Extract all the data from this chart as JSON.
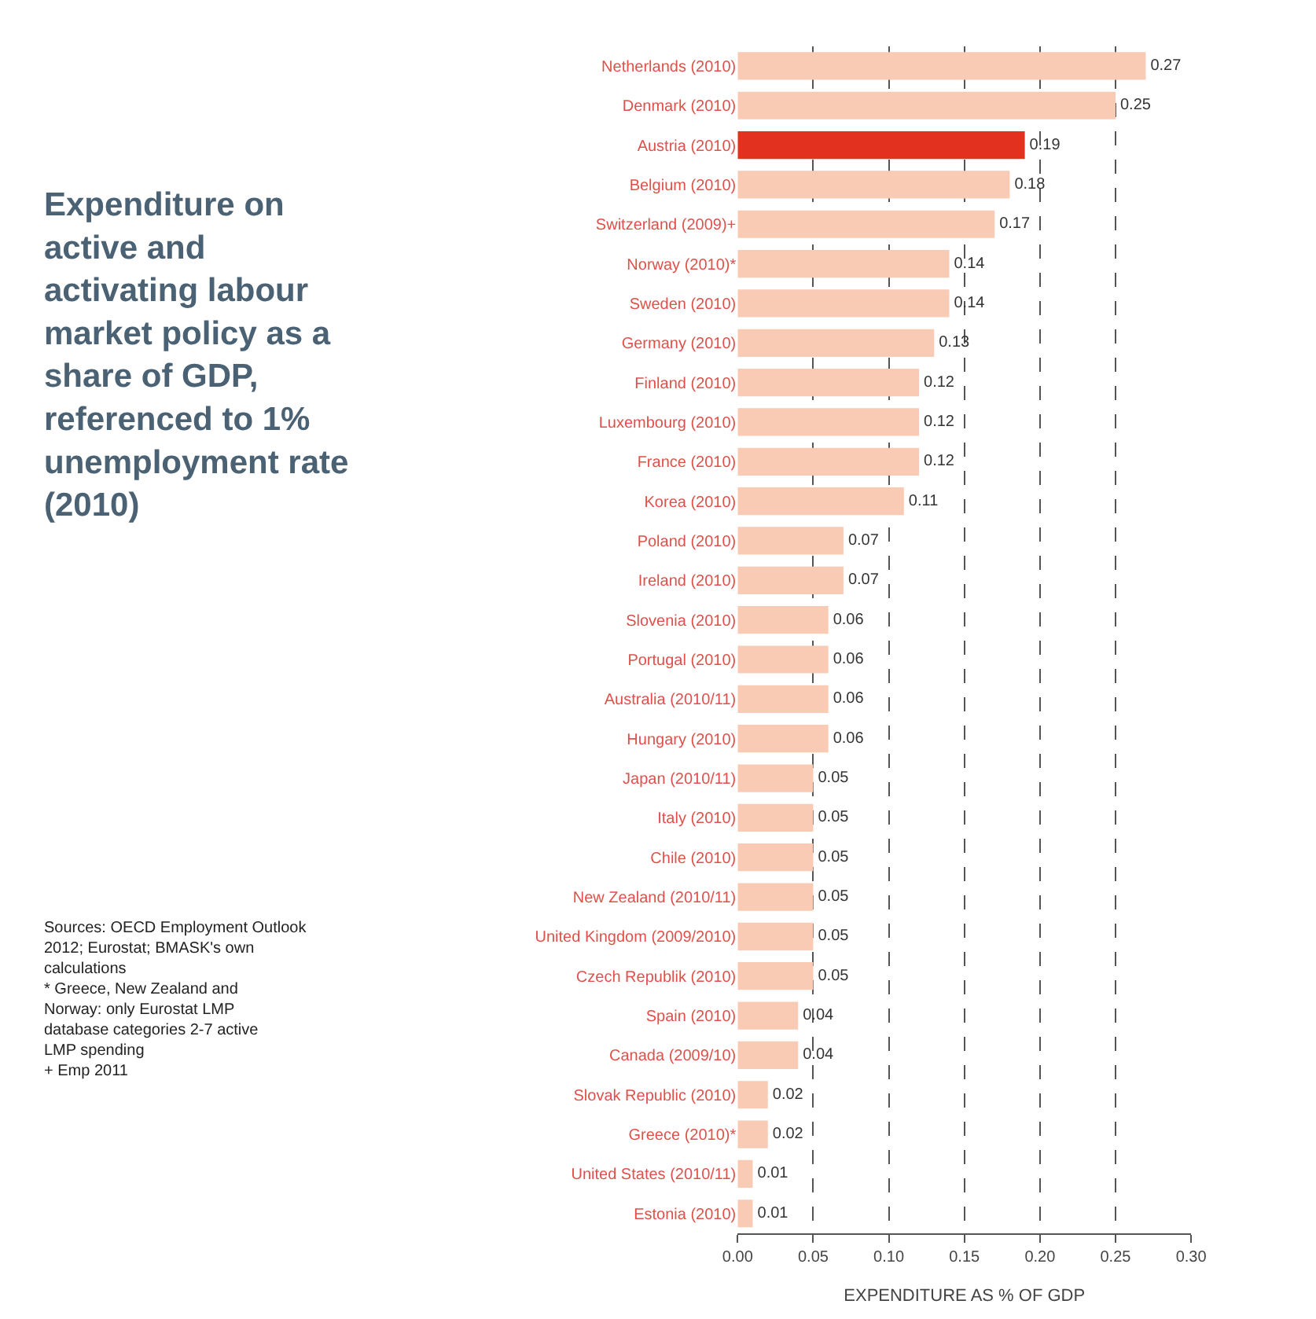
{
  "chart_data": {
    "type": "bar",
    "orientation": "horizontal",
    "title": "Expenditure on active and activating labour market policy as a share of GDP, referenced to 1% unemployment rate (2010)",
    "xlabel": "EXPENDITURE AS % OF GDP",
    "categories": [
      "Netherlands (2010)",
      "Denmark (2010)",
      "Austria (2010)",
      "Belgium (2010)",
      "Switzerland (2009)+",
      "Norway (2010)*",
      "Sweden (2010)",
      "Germany (2010)",
      "Finland (2010)",
      "Luxembourg (2010)",
      "France (2010)",
      "Korea (2010)",
      "Poland (2010)",
      "Ireland (2010)",
      "Slovenia (2010)",
      "Portugal (2010)",
      "Australia (2010/11)",
      "Hungary (2010)",
      "Japan (2010/11)",
      "Italy (2010)",
      "Chile (2010)",
      "New Zealand (2010/11)",
      "United Kingdom (2009/2010)",
      "Czech Republik (2010)",
      "Spain (2010)",
      "Canada (2009/10)",
      "Slovak Republic (2010)",
      "Greece (2010)*",
      "United States (2010/11)",
      "Estonia (2010)"
    ],
    "values": [
      0.27,
      0.25,
      0.19,
      0.18,
      0.17,
      0.14,
      0.14,
      0.13,
      0.12,
      0.12,
      0.12,
      0.11,
      0.07,
      0.07,
      0.06,
      0.06,
      0.06,
      0.06,
      0.05,
      0.05,
      0.05,
      0.05,
      0.05,
      0.05,
      0.04,
      0.04,
      0.02,
      0.02,
      0.01,
      0.01
    ],
    "colors": [
      "#f9cbb5",
      "#f9cbb5",
      "#e2321f",
      "#f9cbb5",
      "#f9cbb5",
      "#f9cbb5",
      "#f9cbb5",
      "#f9cbb5",
      "#f9cbb5",
      "#f9cbb5",
      "#f9cbb5",
      "#f9cbb5",
      "#f9cbb5",
      "#f9cbb5",
      "#f9cbb5",
      "#f9cbb5",
      "#f9cbb5",
      "#f9cbb5",
      "#f9cbb5",
      "#f9cbb5",
      "#f9cbb5",
      "#f9cbb5",
      "#f9cbb5",
      "#f9cbb5",
      "#f9cbb5",
      "#f9cbb5",
      "#f9cbb5",
      "#f9cbb5",
      "#f9cbb5",
      "#f9cbb5"
    ],
    "data_labels": true,
    "xlim": [
      0,
      0.3
    ],
    "xticks": [
      {
        "value": 0,
        "label": "0.00"
      },
      0.05,
      {
        "value": 0.1,
        "label": "0.10"
      },
      0.15,
      {
        "value": 0.2,
        "label": "0.20"
      },
      0.25,
      {
        "value": 0.3,
        "label": "0.30"
      }
    ],
    "grid": "x",
    "legend": false,
    "annotations": [
      "Sources: OECD Employment Outlook 2012; Eurostat; BMASK's own calculations",
      "* Greece, New Zealand and Norway: only Eurostat LMP database categories 2-7 active LMP spending",
      "+ Emp 2011"
    ]
  }
}
